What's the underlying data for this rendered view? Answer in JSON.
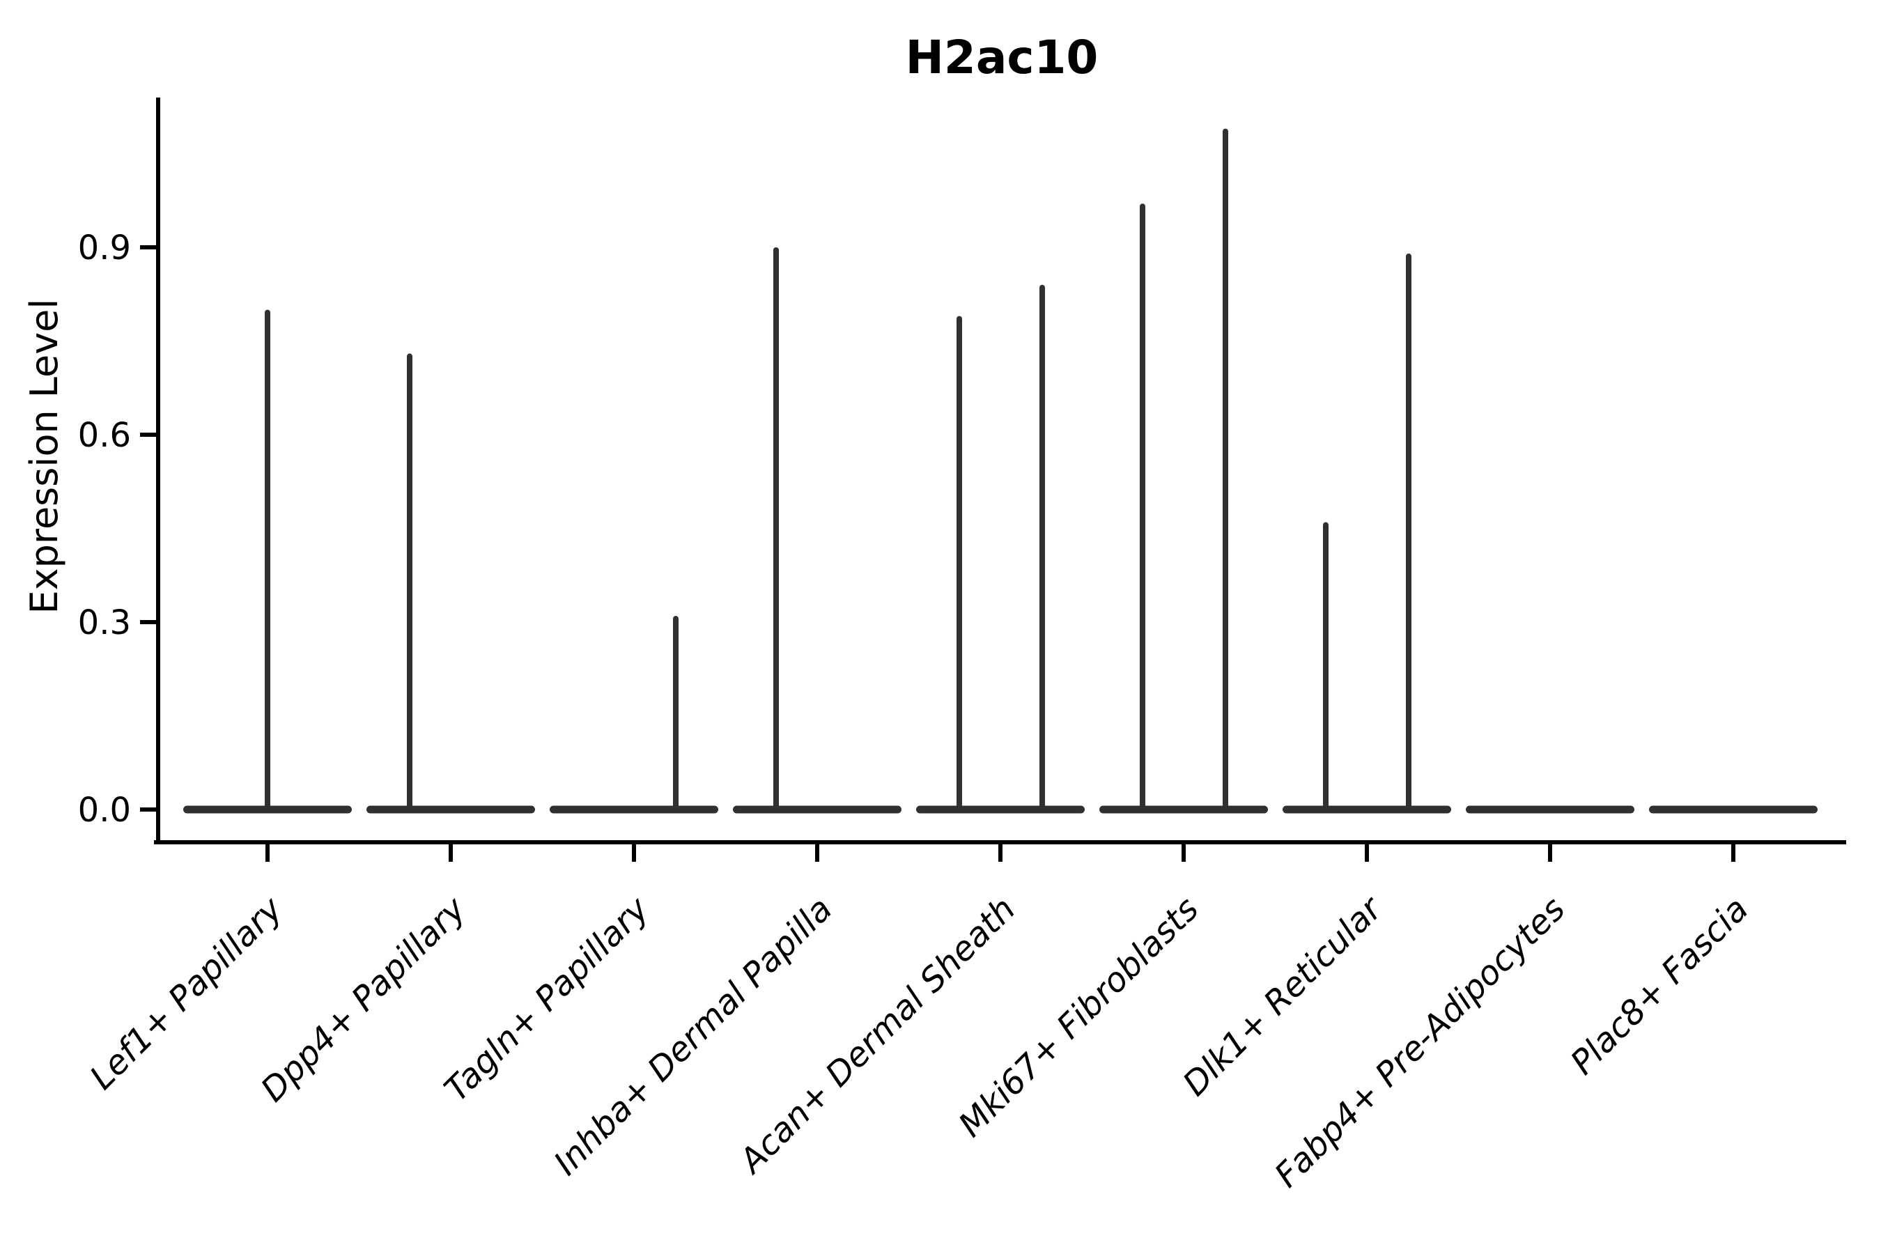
{
  "title": "H2ac10",
  "chart_data": {
    "type": "violin",
    "title": "H2ac10",
    "xlabel": "",
    "ylabel": "Expression Level",
    "ylim": [
      0,
      1.13
    ],
    "yticks": [
      0.0,
      0.3,
      0.6,
      0.9
    ],
    "ytick_labels": [
      "0.0",
      "0.3",
      "0.6",
      "0.9"
    ],
    "grid": false,
    "legend_position": "none",
    "categories": [
      "Lef1+ Papillary",
      "Dpp4+ Papillary",
      "Tagln+ Papillary",
      "Inhba+ Dermal Papilla",
      "Acan+ Dermal Sheath",
      "Mki67+ Fibroblasts",
      "Dlk1+ Reticular",
      "Fabp4+ Pre-Adipocytes",
      "Plac8+ Fascia"
    ],
    "violins": [
      {
        "category": "Lef1+ Papillary",
        "baseline_value": 0.0,
        "spikes": [
          {
            "side": "center",
            "max": 0.8
          }
        ]
      },
      {
        "category": "Dpp4+ Papillary",
        "baseline_value": 0.0,
        "spikes": [
          {
            "side": "left",
            "max": 0.73
          }
        ]
      },
      {
        "category": "Tagln+ Papillary",
        "baseline_value": 0.0,
        "spikes": [
          {
            "side": "right",
            "max": 0.31
          }
        ]
      },
      {
        "category": "Inhba+ Dermal Papilla",
        "baseline_value": 0.0,
        "spikes": [
          {
            "side": "left",
            "max": 0.9
          }
        ]
      },
      {
        "category": "Acan+ Dermal Sheath",
        "baseline_value": 0.0,
        "spikes": [
          {
            "side": "left",
            "max": 0.79
          },
          {
            "side": "right",
            "max": 0.84
          }
        ]
      },
      {
        "category": "Mki67+ Fibroblasts",
        "baseline_value": 0.0,
        "spikes": [
          {
            "side": "left",
            "max": 0.97
          },
          {
            "side": "right",
            "max": 1.09
          }
        ]
      },
      {
        "category": "Dlk1+ Reticular",
        "baseline_value": 0.0,
        "spikes": [
          {
            "side": "left",
            "max": 0.46
          },
          {
            "side": "right",
            "max": 0.89
          }
        ]
      },
      {
        "category": "Fabp4+ Pre-Adipocytes",
        "baseline_value": 0.0,
        "spikes": []
      },
      {
        "category": "Plac8+ Fascia",
        "baseline_value": 0.0,
        "spikes": []
      }
    ],
    "colors": {
      "violin_fill": "#303030",
      "axis": "#000000",
      "text": "#000000",
      "background": "#ffffff"
    }
  }
}
